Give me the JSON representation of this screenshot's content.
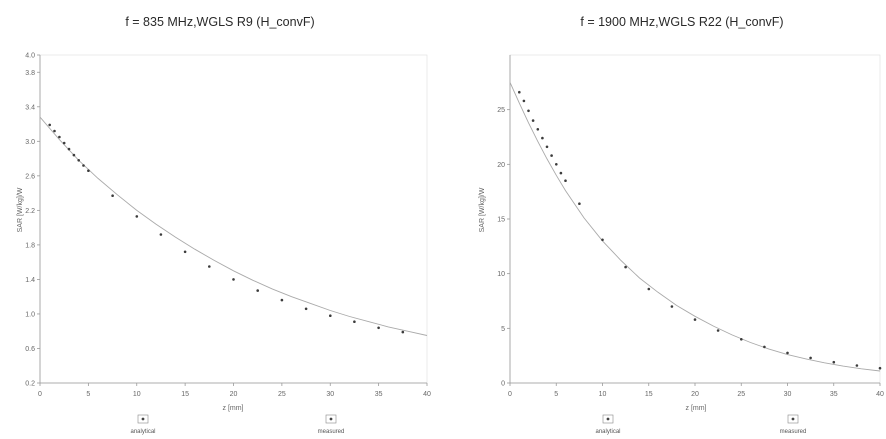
{
  "chart_data": [
    {
      "type": "line",
      "title": "f = 835 MHz,WGLS R9 (H_convF)",
      "xlabel": "z [mm]",
      "ylabel": "SAR [W/kg]/W",
      "xlim": [
        0,
        40
      ],
      "ylim": [
        0.2,
        4.0
      ],
      "xticks": [
        "0",
        "5",
        "10",
        "15",
        "20",
        "25",
        "30",
        "35",
        "40"
      ],
      "yticks": [
        "0.2",
        "0.6",
        "1.0",
        "1.4",
        "1.8",
        "2.2",
        "2.6",
        "3.0",
        "3.4",
        "3.8",
        "4.0"
      ],
      "legend": [
        "analytical",
        "measured"
      ],
      "series": [
        {
          "name": "analytical",
          "kind": "curve",
          "x": [
            0,
            2,
            4,
            6,
            8,
            10,
            12,
            14,
            16,
            18,
            20,
            22,
            24,
            26,
            28,
            30,
            32,
            34,
            36,
            38,
            40
          ],
          "y": [
            3.28,
            3.02,
            2.78,
            2.57,
            2.38,
            2.2,
            2.04,
            1.89,
            1.75,
            1.62,
            1.5,
            1.39,
            1.29,
            1.2,
            1.12,
            1.04,
            0.97,
            0.91,
            0.85,
            0.8,
            0.75
          ]
        },
        {
          "name": "measured",
          "kind": "markers",
          "x": [
            1,
            1.5,
            2,
            2.5,
            3,
            3.5,
            4,
            4.5,
            5,
            7.5,
            10,
            12.5,
            15,
            17.5,
            20,
            22.5,
            25,
            27.5,
            30,
            32.5,
            35,
            37.5
          ],
          "y": [
            3.19,
            3.12,
            3.05,
            2.98,
            2.91,
            2.84,
            2.78,
            2.72,
            2.66,
            2.37,
            2.13,
            1.92,
            1.72,
            1.55,
            1.4,
            1.27,
            1.16,
            1.06,
            0.98,
            0.91,
            0.84,
            0.79
          ]
        }
      ]
    },
    {
      "type": "line",
      "title": "f = 1900 MHz,WGLS R22 (H_convF)",
      "xlabel": "z [mm]",
      "ylabel": "SAR [W/kg]/W",
      "xlim": [
        0,
        40
      ],
      "ylim": [
        0,
        30
      ],
      "xticks": [
        "0",
        "5",
        "10",
        "15",
        "20",
        "25",
        "30",
        "35",
        "40"
      ],
      "yticks": [
        "0",
        "5",
        "10",
        "15",
        "20",
        "25"
      ],
      "legend": [
        "analytical",
        "measured"
      ],
      "series": [
        {
          "name": "analytical",
          "kind": "curve",
          "x": [
            0,
            1,
            2,
            3,
            4,
            5,
            6,
            8,
            10,
            12,
            14,
            16,
            18,
            20,
            22,
            24,
            26,
            28,
            30,
            32,
            34,
            36,
            38,
            40
          ],
          "y": [
            27.5,
            25.6,
            23.8,
            22.1,
            20.5,
            19.0,
            17.6,
            15.1,
            13.0,
            11.2,
            9.6,
            8.3,
            7.1,
            6.1,
            5.2,
            4.4,
            3.7,
            3.1,
            2.6,
            2.2,
            1.85,
            1.55,
            1.3,
            1.1
          ]
        },
        {
          "name": "measured",
          "kind": "markers",
          "x": [
            1,
            1.5,
            2,
            2.5,
            3,
            3.5,
            4,
            4.5,
            5,
            5.5,
            6,
            7.5,
            10,
            12.5,
            15,
            17.5,
            20,
            22.5,
            25,
            27.5,
            30,
            32.5,
            35,
            37.5,
            40
          ],
          "y": [
            26.6,
            25.8,
            24.9,
            24.0,
            23.2,
            22.4,
            21.6,
            20.8,
            20.0,
            19.2,
            18.5,
            16.4,
            13.1,
            10.6,
            8.6,
            7.0,
            5.8,
            4.8,
            4.0,
            3.3,
            2.75,
            2.3,
            1.9,
            1.6,
            1.35
          ]
        }
      ]
    }
  ]
}
